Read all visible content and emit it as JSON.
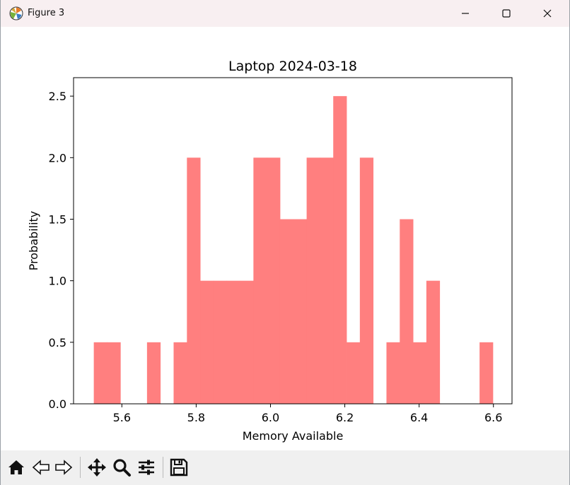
{
  "window": {
    "title": "Figure 3",
    "icons": {
      "app": "matplotlib-icon",
      "minimize": "minimize-icon",
      "maximize": "maximize-icon",
      "close": "close-icon"
    }
  },
  "toolbar": {
    "buttons": [
      "home-icon",
      "back-icon",
      "forward-icon",
      "pan-icon",
      "zoom-icon",
      "configure-subplots-icon",
      "save-icon"
    ]
  },
  "chart_data": {
    "type": "bar",
    "title": "Laptop 2024-03-18",
    "xlabel": "Memory Available",
    "ylabel": "Probability",
    "xlim": [
      5.47,
      6.65
    ],
    "ylim": [
      0,
      2.65
    ],
    "xticks": [
      5.6,
      5.8,
      6.0,
      6.2,
      6.4,
      6.6
    ],
    "xtick_labels": [
      "5.6",
      "5.8",
      "6.0",
      "6.2",
      "6.4",
      "6.6"
    ],
    "yticks": [
      0.0,
      0.5,
      1.0,
      1.5,
      2.0,
      2.5
    ],
    "ytick_labels": [
      "0.0",
      "0.5",
      "1.0",
      "1.5",
      "2.0",
      "2.5"
    ],
    "bin_edges": [
      5.5245,
      5.5603,
      5.5961,
      5.6319,
      5.6677,
      5.7035,
      5.7393,
      5.7751,
      5.8109,
      5.8467,
      5.8825,
      5.9183,
      5.9541,
      5.9899,
      6.0257,
      6.0615,
      6.0973,
      6.1331,
      6.1689,
      6.2047,
      6.2405,
      6.2763,
      6.3121,
      6.3479,
      6.3837,
      6.4195,
      6.4553,
      6.4911,
      6.5269,
      6.5627,
      6.5985
    ],
    "values": [
      0.5,
      0.5,
      0,
      0,
      0.5,
      0,
      0.5,
      2.0,
      1.0,
      1.0,
      1.0,
      1.0,
      2.0,
      2.0,
      1.5,
      1.5,
      2.0,
      2.0,
      2.5,
      0.5,
      2.0,
      0,
      0.5,
      1.5,
      0.5,
      1.0,
      0,
      0,
      0,
      0.5
    ],
    "bar_color": "#ff7f7f",
    "grid": false,
    "legend": "none"
  }
}
